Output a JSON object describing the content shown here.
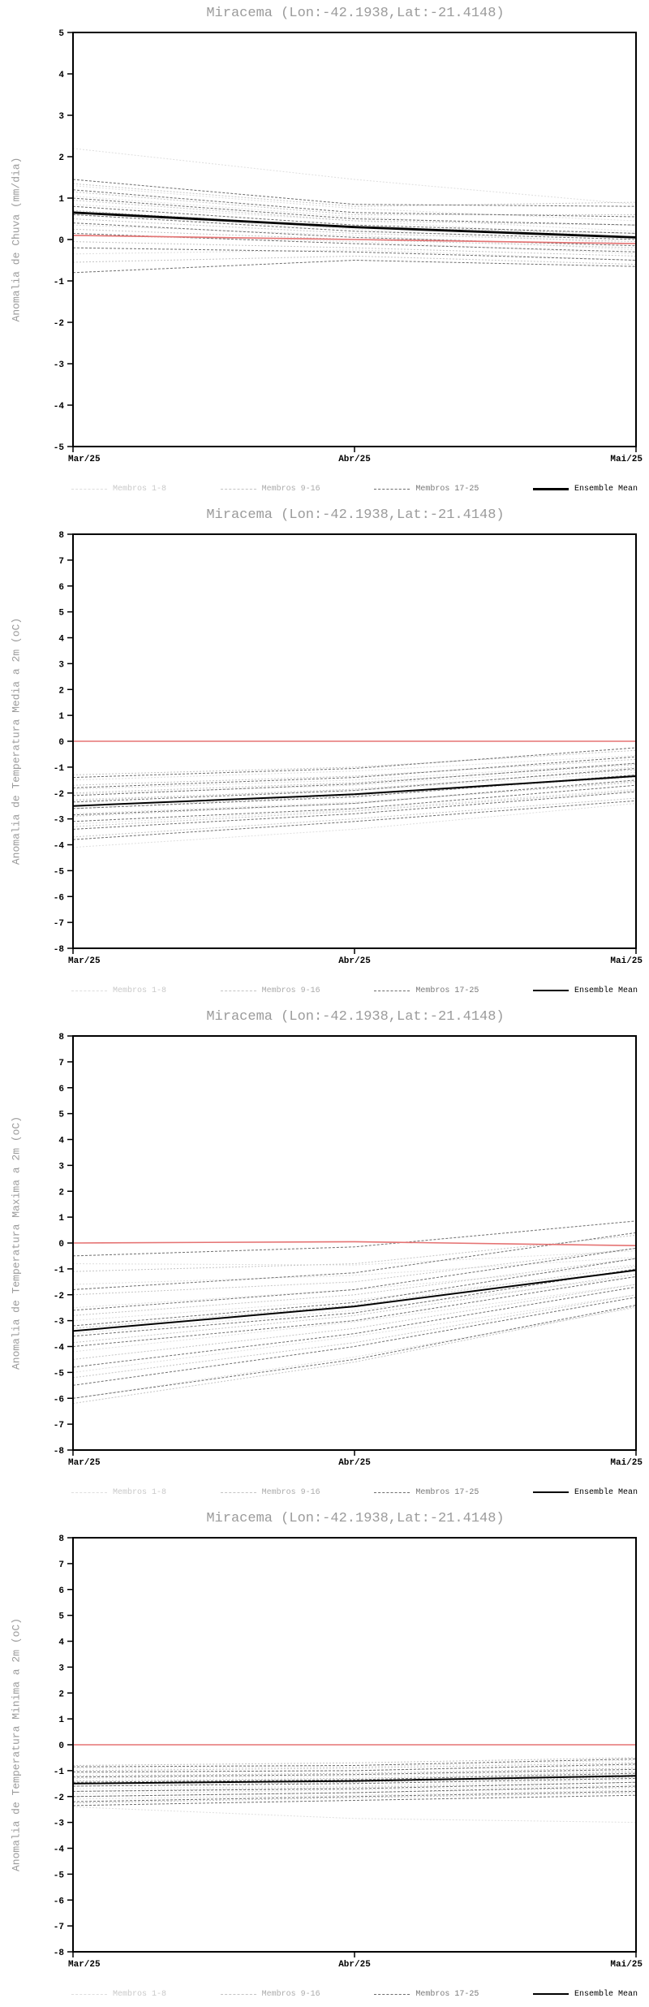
{
  "chart_data": [
    {
      "type": "line",
      "title": "Miracema (Lon:-42.1938,Lat:-21.4148)",
      "ylabel": "Anomalia de Chuva (mm/dia)",
      "x_labels": [
        "Mar/25",
        "Abr/25",
        "Mai/25"
      ],
      "ylim": [
        -5,
        5
      ],
      "ytick_step": 1,
      "grid": false,
      "legend_position": "bottom",
      "series": [
        {
          "name": "Membros 1-8",
          "color": "#dedede",
          "width": 1,
          "dash": "2 2",
          "lines": [
            [
              2.2,
              1.45,
              0.85
            ],
            [
              1.3,
              0.75,
              0.45
            ],
            [
              1.05,
              0.55,
              0.2
            ],
            [
              0.85,
              0.45,
              0.05
            ],
            [
              0.6,
              0.25,
              -0.1
            ],
            [
              0.35,
              0.1,
              -0.25
            ],
            [
              0.1,
              -0.05,
              -0.35
            ],
            [
              -0.35,
              -0.25,
              -0.5
            ]
          ]
        },
        {
          "name": "Membros 9-16",
          "color": "#c4c4c4",
          "width": 1,
          "dash": "2 2",
          "lines": [
            [
              1.35,
              0.8,
              0.9
            ],
            [
              1.15,
              0.6,
              0.6
            ],
            [
              0.95,
              0.45,
              0.35
            ],
            [
              0.7,
              0.3,
              0.15
            ],
            [
              0.5,
              0.15,
              -0.05
            ],
            [
              0.25,
              0.0,
              -0.2
            ],
            [
              -0.05,
              -0.2,
              -0.4
            ],
            [
              -0.55,
              -0.4,
              -0.6
            ]
          ]
        },
        {
          "name": "Membros 17-25",
          "color": "#6e6e6e",
          "width": 1,
          "dash": "3 2",
          "lines": [
            [
              1.45,
              0.85,
              0.8
            ],
            [
              1.2,
              0.65,
              0.55
            ],
            [
              1.0,
              0.5,
              0.35
            ],
            [
              0.8,
              0.35,
              0.15
            ],
            [
              0.6,
              0.2,
              0.0
            ],
            [
              0.4,
              0.05,
              -0.15
            ],
            [
              0.15,
              -0.1,
              -0.3
            ],
            [
              -0.2,
              -0.3,
              -0.5
            ],
            [
              -0.8,
              -0.5,
              -0.65
            ]
          ]
        },
        {
          "name": "Zero line",
          "color": "#e57373",
          "width": 1.6,
          "dash": "",
          "lines": [
            [
              0.1,
              0.0,
              -0.1
            ]
          ]
        },
        {
          "name": "Ensemble Mean",
          "color": "#000000",
          "width": 2.8,
          "dash": "",
          "lines": [
            [
              0.65,
              0.3,
              0.05
            ]
          ]
        }
      ],
      "legend": [
        {
          "label": "Membros 1-8",
          "color": "#c9c9c9",
          "sample_color": "#dedede",
          "dashed": true,
          "sample_width": 1
        },
        {
          "label": "Membros 9-16",
          "color": "#ababab",
          "sample_color": "#c4c4c4",
          "dashed": true,
          "sample_width": 1
        },
        {
          "label": "Membros 17-25",
          "color": "#7a7a7a",
          "sample_color": "#6e6e6e",
          "dashed": true,
          "sample_width": 1
        },
        {
          "label": "Ensemble Mean",
          "color": "#000000",
          "sample_color": "#000000",
          "dashed": false,
          "sample_width": 3
        }
      ]
    },
    {
      "type": "line",
      "title": "Miracema (Lon:-42.1938,Lat:-21.4148)",
      "ylabel": "Anomalia de Temperatura Media a 2m (oC)",
      "x_labels": [
        "Mar/25",
        "Abr/25",
        "Mai/25"
      ],
      "ylim": [
        -8,
        8
      ],
      "ytick_step": 1,
      "grid": false,
      "legend_position": "bottom",
      "series": [
        {
          "name": "Membros 1-8",
          "color": "#dedede",
          "width": 1,
          "dash": "2 2",
          "lines": [
            [
              -1.5,
              -1.15,
              -0.55
            ],
            [
              -1.85,
              -1.5,
              -0.85
            ],
            [
              -2.05,
              -1.7,
              -1.0
            ],
            [
              -2.25,
              -1.9,
              -1.2
            ],
            [
              -2.5,
              -2.1,
              -1.4
            ],
            [
              -2.8,
              -2.35,
              -1.6
            ],
            [
              -3.2,
              -2.65,
              -1.85
            ],
            [
              -4.1,
              -3.4,
              -2.4
            ]
          ]
        },
        {
          "name": "Membros 9-16",
          "color": "#c4c4c4",
          "width": 1,
          "dash": "2 2",
          "lines": [
            [
              -1.3,
              -1.0,
              -0.35
            ],
            [
              -1.7,
              -1.35,
              -0.7
            ],
            [
              -2.0,
              -1.6,
              -0.9
            ],
            [
              -2.3,
              -1.85,
              -1.1
            ],
            [
              -2.6,
              -2.1,
              -1.3
            ],
            [
              -2.9,
              -2.4,
              -1.55
            ],
            [
              -3.3,
              -2.7,
              -1.9
            ],
            [
              -3.7,
              -3.0,
              -2.2
            ]
          ]
        },
        {
          "name": "Membros 17-25",
          "color": "#6e6e6e",
          "width": 1,
          "dash": "3 2",
          "lines": [
            [
              -1.4,
              -1.05,
              -0.25
            ],
            [
              -1.8,
              -1.4,
              -0.6
            ],
            [
              -2.1,
              -1.65,
              -0.85
            ],
            [
              -2.35,
              -1.9,
              -1.05
            ],
            [
              -2.6,
              -2.15,
              -1.3
            ],
            [
              -2.85,
              -2.4,
              -1.5
            ],
            [
              -3.1,
              -2.6,
              -1.7
            ],
            [
              -3.4,
              -2.8,
              -1.95
            ],
            [
              -3.8,
              -3.1,
              -2.3
            ]
          ]
        },
        {
          "name": "Zero line",
          "color": "#e57373",
          "width": 1.6,
          "dash": "",
          "lines": [
            [
              0,
              0,
              0
            ]
          ]
        },
        {
          "name": "Ensemble Mean",
          "color": "#000000",
          "width": 2,
          "dash": "",
          "lines": [
            [
              -2.5,
              -2.05,
              -1.35
            ]
          ]
        }
      ],
      "legend": [
        {
          "label": "Membros 1-8",
          "color": "#c9c9c9",
          "sample_color": "#dedede",
          "dashed": true,
          "sample_width": 1
        },
        {
          "label": "Membros 9-16",
          "color": "#ababab",
          "sample_color": "#c4c4c4",
          "dashed": true,
          "sample_width": 1
        },
        {
          "label": "Membros 17-25",
          "color": "#7a7a7a",
          "sample_color": "#6e6e6e",
          "dashed": true,
          "sample_width": 1
        },
        {
          "label": "Ensemble Mean",
          "color": "#000000",
          "sample_color": "#000000",
          "dashed": false,
          "sample_width": 2
        }
      ]
    },
    {
      "type": "line",
      "title": "Miracema (Lon:-42.1938,Lat:-21.4148)",
      "ylabel": "Anomalia de Temperatura Maxima a 2m (oC)",
      "x_labels": [
        "Mar/25",
        "Abr/25",
        "Mai/25"
      ],
      "ylim": [
        -8,
        8
      ],
      "ytick_step": 1,
      "grid": false,
      "legend_position": "bottom",
      "series": [
        {
          "name": "Membros 1-8",
          "color": "#dedede",
          "width": 1,
          "dash": "2 2",
          "lines": [
            [
              -0.8,
              -0.85,
              -0.3
            ],
            [
              -1.6,
              -1.25,
              -0.55
            ],
            [
              -2.5,
              -1.8,
              -0.85
            ],
            [
              -3.0,
              -2.2,
              -1.05
            ],
            [
              -3.5,
              -2.6,
              -1.3
            ],
            [
              -4.2,
              -3.05,
              -1.6
            ],
            [
              -5.0,
              -3.6,
              -2.0
            ],
            [
              -6.0,
              -4.4,
              -2.5
            ]
          ]
        },
        {
          "name": "Membros 9-16",
          "color": "#c4c4c4",
          "width": 1,
          "dash": "2 2",
          "lines": [
            [
              -1.1,
              -0.8,
              0.3
            ],
            [
              -2.0,
              -1.5,
              -0.2
            ],
            [
              -2.8,
              -2.0,
              -0.6
            ],
            [
              -3.3,
              -2.4,
              -0.9
            ],
            [
              -3.85,
              -2.8,
              -1.2
            ],
            [
              -4.5,
              -3.3,
              -1.6
            ],
            [
              -5.2,
              -3.85,
              -2.0
            ],
            [
              -6.2,
              -4.6,
              -2.45
            ]
          ]
        },
        {
          "name": "Membros 17-25",
          "color": "#6e6e6e",
          "width": 1,
          "dash": "3 2",
          "lines": [
            [
              -0.5,
              -0.15,
              0.85
            ],
            [
              -1.8,
              -1.15,
              0.4
            ],
            [
              -2.6,
              -1.8,
              -0.2
            ],
            [
              -3.2,
              -2.3,
              -0.6
            ],
            [
              -3.6,
              -2.7,
              -1.0
            ],
            [
              -4.0,
              -3.0,
              -1.3
            ],
            [
              -4.8,
              -3.5,
              -1.7
            ],
            [
              -5.5,
              -4.0,
              -2.1
            ],
            [
              -6.0,
              -4.5,
              -2.4
            ]
          ]
        },
        {
          "name": "Zero line",
          "color": "#e57373",
          "width": 1.6,
          "dash": "",
          "lines": [
            [
              0.0,
              0.05,
              -0.1
            ]
          ]
        },
        {
          "name": "Ensemble Mean",
          "color": "#000000",
          "width": 2,
          "dash": "",
          "lines": [
            [
              -3.4,
              -2.45,
              -1.05
            ]
          ]
        }
      ],
      "legend": [
        {
          "label": "Membros 1-8",
          "color": "#c9c9c9",
          "sample_color": "#dedede",
          "dashed": true,
          "sample_width": 1
        },
        {
          "label": "Membros 9-16",
          "color": "#ababab",
          "sample_color": "#c4c4c4",
          "dashed": true,
          "sample_width": 1
        },
        {
          "label": "Membros 17-25",
          "color": "#7a7a7a",
          "sample_color": "#6e6e6e",
          "dashed": true,
          "sample_width": 1
        },
        {
          "label": "Ensemble Mean",
          "color": "#000000",
          "sample_color": "#000000",
          "dashed": false,
          "sample_width": 2
        }
      ]
    },
    {
      "type": "line",
      "title": "Miracema (Lon:-42.1938,Lat:-21.4148)",
      "ylabel": "Anomalia de Temperatura Minima a 2m (oC)",
      "x_labels": [
        "Mar/25",
        "Abr/25",
        "Mai/25"
      ],
      "ylim": [
        -8,
        8
      ],
      "ytick_step": 1,
      "grid": false,
      "legend_position": "bottom",
      "series": [
        {
          "name": "Membros 1-8",
          "color": "#dedede",
          "width": 1,
          "dash": "2 2",
          "lines": [
            [
              -0.9,
              -0.85,
              -0.6
            ],
            [
              -1.1,
              -1.0,
              -0.8
            ],
            [
              -1.3,
              -1.2,
              -1.0
            ],
            [
              -1.5,
              -1.4,
              -1.15
            ],
            [
              -1.7,
              -1.6,
              -1.35
            ],
            [
              -1.9,
              -1.75,
              -1.55
            ],
            [
              -2.1,
              -1.95,
              -1.75
            ],
            [
              -2.4,
              -2.85,
              -3.0
            ]
          ]
        },
        {
          "name": "Membros 9-16",
          "color": "#c4c4c4",
          "width": 1,
          "dash": "2 2",
          "lines": [
            [
              -0.8,
              -0.7,
              -0.5
            ],
            [
              -1.0,
              -0.9,
              -0.7
            ],
            [
              -1.2,
              -1.1,
              -0.9
            ],
            [
              -1.4,
              -1.3,
              -1.05
            ],
            [
              -1.6,
              -1.45,
              -1.25
            ],
            [
              -1.8,
              -1.65,
              -1.45
            ],
            [
              -2.0,
              -1.85,
              -1.65
            ],
            [
              -2.25,
              -2.05,
              -1.85
            ]
          ]
        },
        {
          "name": "Membros 17-25",
          "color": "#6e6e6e",
          "width": 1,
          "dash": "3 2",
          "lines": [
            [
              -0.85,
              -0.8,
              -0.55
            ],
            [
              -1.05,
              -1.0,
              -0.75
            ],
            [
              -1.25,
              -1.15,
              -0.95
            ],
            [
              -1.45,
              -1.35,
              -1.1
            ],
            [
              -1.6,
              -1.5,
              -1.3
            ],
            [
              -1.8,
              -1.7,
              -1.45
            ],
            [
              -2.0,
              -1.85,
              -1.6
            ],
            [
              -2.2,
              -2.0,
              -1.8
            ],
            [
              -2.35,
              -2.15,
              -1.95
            ]
          ]
        },
        {
          "name": "Zero line",
          "color": "#e57373",
          "width": 1.6,
          "dash": "",
          "lines": [
            [
              0,
              0,
              0
            ]
          ]
        },
        {
          "name": "Ensemble Mean",
          "color": "#000000",
          "width": 2,
          "dash": "",
          "lines": [
            [
              -1.5,
              -1.4,
              -1.2
            ]
          ]
        }
      ],
      "legend": [
        {
          "label": "Membros 1-8",
          "color": "#c9c9c9",
          "sample_color": "#dedede",
          "dashed": true,
          "sample_width": 1
        },
        {
          "label": "Membros 9-16",
          "color": "#ababab",
          "sample_color": "#c4c4c4",
          "dashed": true,
          "sample_width": 1
        },
        {
          "label": "Membros 17-25",
          "color": "#7a7a7a",
          "sample_color": "#6e6e6e",
          "dashed": true,
          "sample_width": 1
        },
        {
          "label": "Ensemble Mean",
          "color": "#000000",
          "sample_color": "#000000",
          "dashed": false,
          "sample_width": 2
        }
      ]
    }
  ]
}
